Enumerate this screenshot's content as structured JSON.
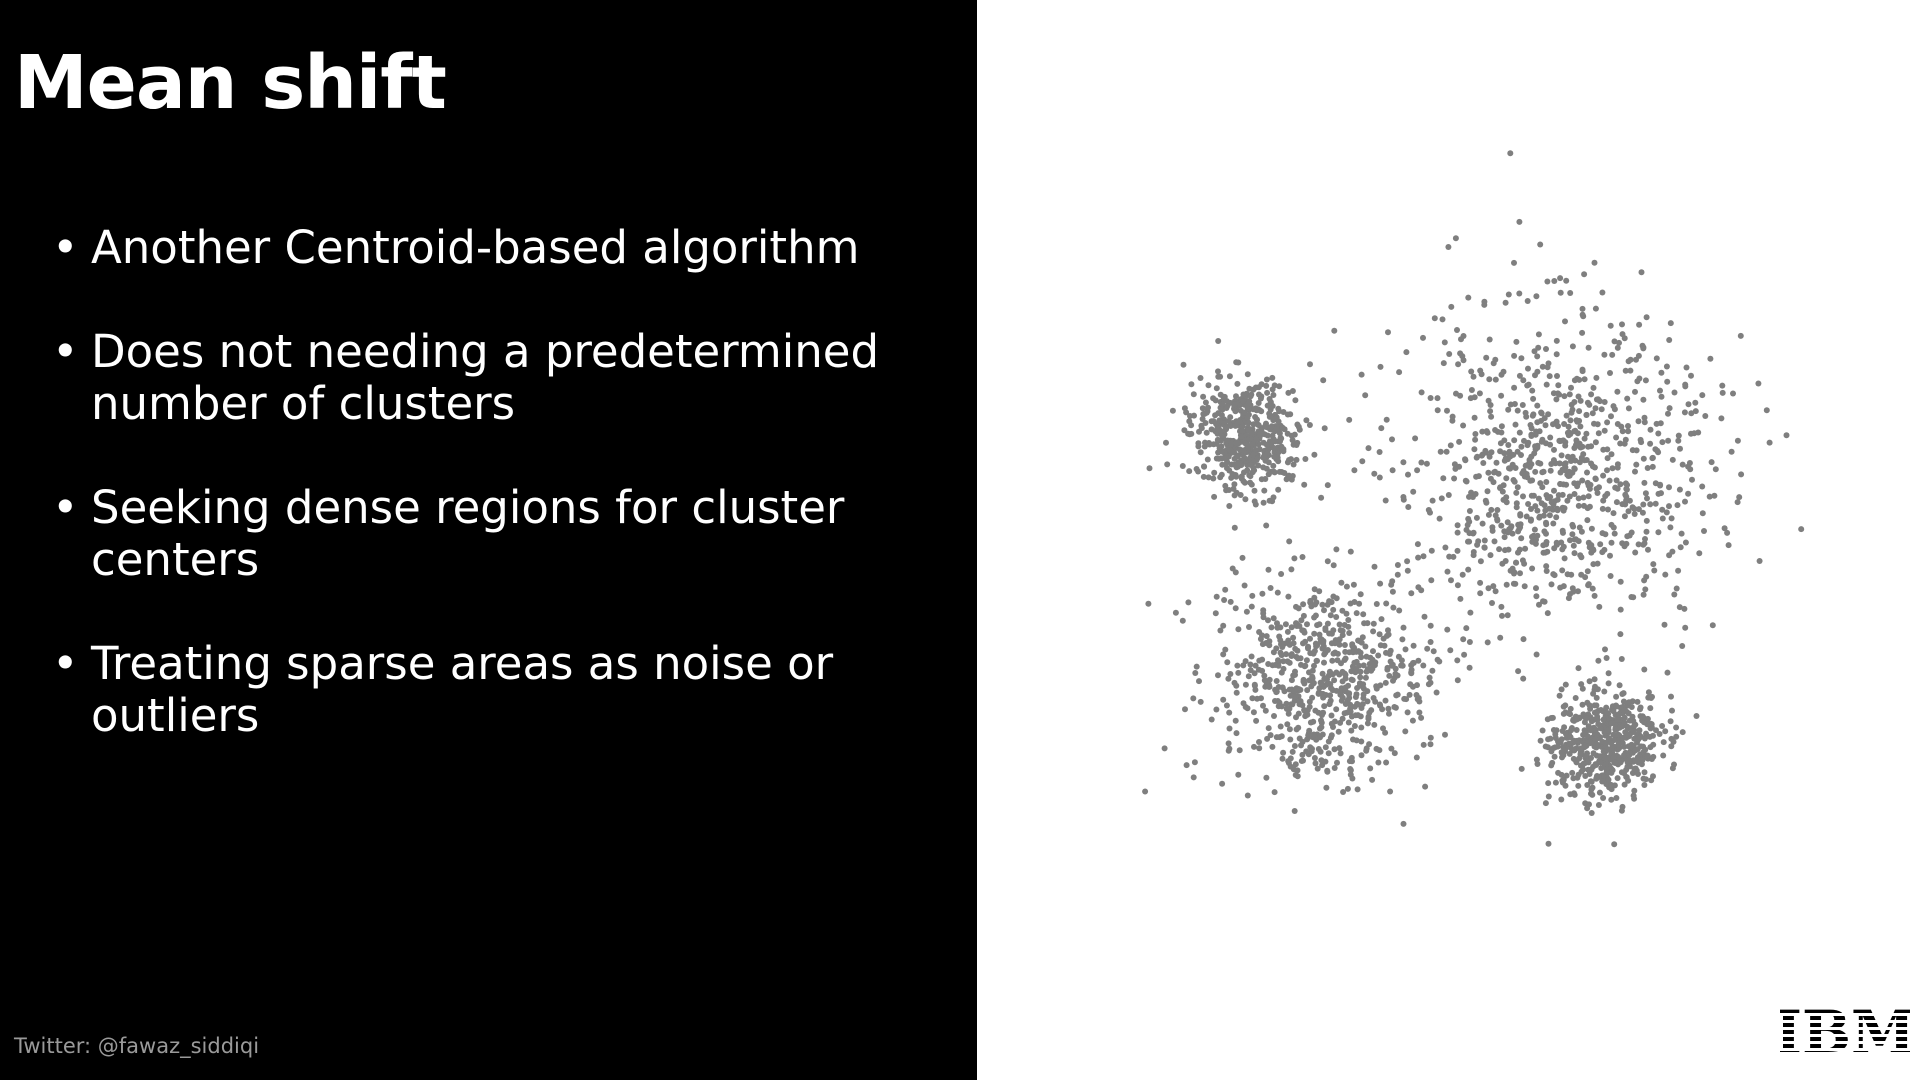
{
  "header": {
    "title": "Mean shift"
  },
  "bullets": [
    "Another Centroid-based algorithm",
    "Does not needing a predetermined number of clusters",
    "Seeking dense regions for cluster centers",
    "Treating sparse areas as noise or outliers"
  ],
  "footer": {
    "credit": "Twitter: @fawaz_siddiqi",
    "logo": "IBM"
  }
}
